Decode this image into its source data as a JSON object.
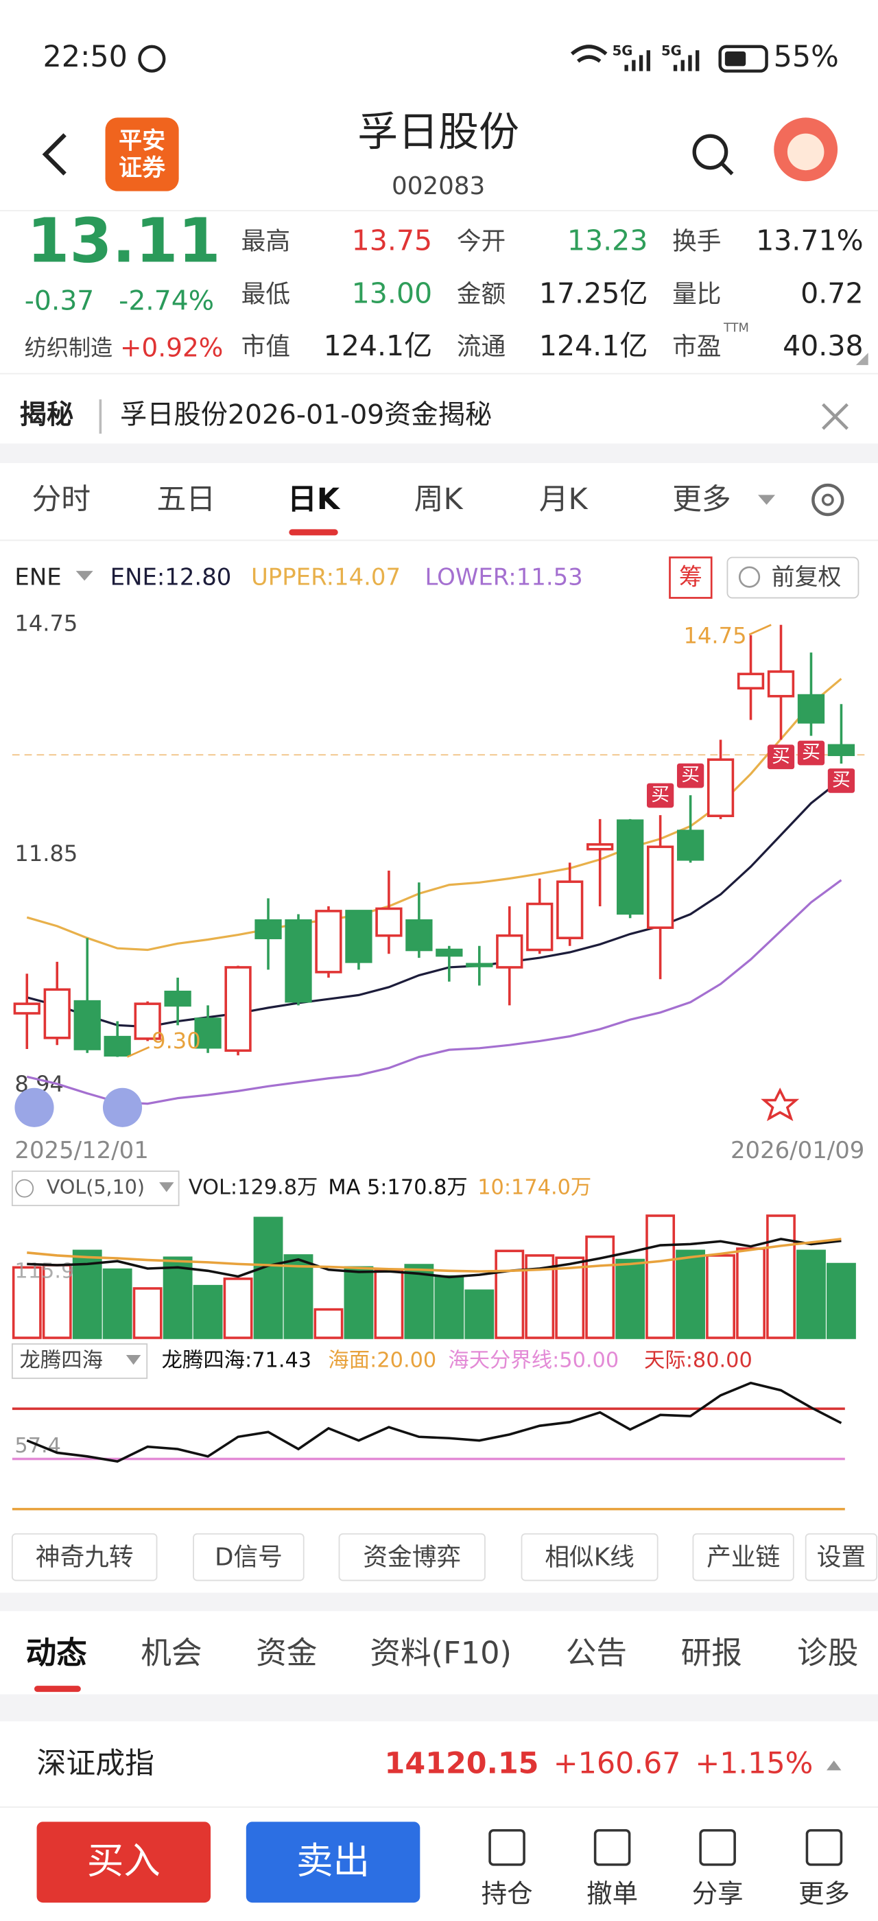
{
  "status_bar": {
    "time": "22:50",
    "net": "5G",
    "battery": "55%"
  },
  "header": {
    "logo": [
      "平安",
      "证券"
    ],
    "name": "孚日股份",
    "code": "002083"
  },
  "quote": {
    "price": "13.11",
    "change": "-0.37",
    "change_pct": "-2.74%",
    "sector": "纺织制造",
    "sector_change": "+0.92%",
    "fields": [
      {
        "label": "最高",
        "value": "13.75"
      },
      {
        "label": "今开",
        "value": "13.23"
      },
      {
        "label": "换手",
        "value": "13.71%"
      },
      {
        "label": "最低",
        "value": "13.00"
      },
      {
        "label": "金额",
        "value": "17.25亿"
      },
      {
        "label": "量比",
        "value": "0.72"
      },
      {
        "label": "市值",
        "value": "124.1亿"
      },
      {
        "label": "流通",
        "value": "124.1亿"
      },
      {
        "label": "市盈",
        "value": "40.38"
      }
    ],
    "pe_suffix": "TTM"
  },
  "banner": {
    "tag": "揭秘",
    "text": "孚日股份2026-01-09资金揭秘"
  },
  "period_tabs": [
    "分时",
    "五日",
    "日K",
    "周K",
    "月K",
    "更多"
  ],
  "kline": {
    "indicator": "ENE",
    "chip": "筹",
    "adjust": "前复权",
    "ylim": [
      8.94,
      14.75
    ],
    "yticks": [
      14.75,
      11.85,
      8.94
    ],
    "dates": [
      "2025/12/01",
      "2026/01/09"
    ],
    "low_label": "9.30",
    "candles": [
      {
        "o": 9.85,
        "h": 10.35,
        "l": 9.4,
        "c": 9.97
      },
      {
        "o": 9.54,
        "h": 10.5,
        "l": 9.45,
        "c": 10.15
      },
      {
        "o": 10.0,
        "h": 10.8,
        "l": 9.35,
        "c": 9.4
      },
      {
        "o": 9.55,
        "h": 9.75,
        "l": 9.3,
        "c": 9.32
      },
      {
        "o": 9.53,
        "h": 10.0,
        "l": 9.5,
        "c": 9.97
      },
      {
        "o": 10.12,
        "h": 10.3,
        "l": 9.7,
        "c": 9.95
      },
      {
        "o": 9.78,
        "h": 9.95,
        "l": 9.35,
        "c": 9.42
      },
      {
        "o": 9.38,
        "h": 10.45,
        "l": 9.32,
        "c": 10.43
      },
      {
        "o": 11.02,
        "h": 11.3,
        "l": 10.4,
        "c": 10.8
      },
      {
        "o": 11.02,
        "h": 11.1,
        "l": 9.95,
        "c": 10.0
      },
      {
        "o": 10.37,
        "h": 11.2,
        "l": 10.3,
        "c": 11.14
      },
      {
        "o": 11.14,
        "h": 11.15,
        "l": 10.4,
        "c": 10.5
      },
      {
        "o": 10.83,
        "h": 11.65,
        "l": 10.6,
        "c": 11.17
      },
      {
        "o": 11.02,
        "h": 11.5,
        "l": 10.55,
        "c": 10.65
      },
      {
        "o": 10.65,
        "h": 10.7,
        "l": 10.25,
        "c": 10.58
      },
      {
        "o": 10.47,
        "h": 10.7,
        "l": 10.2,
        "c": 10.45
      },
      {
        "o": 10.43,
        "h": 11.2,
        "l": 9.95,
        "c": 10.83
      },
      {
        "o": 10.65,
        "h": 11.55,
        "l": 10.6,
        "c": 11.23
      },
      {
        "o": 10.8,
        "h": 11.75,
        "l": 10.7,
        "c": 11.51
      },
      {
        "o": 11.92,
        "h": 12.3,
        "l": 11.2,
        "c": 11.98
      },
      {
        "o": 12.28,
        "h": 12.3,
        "l": 11.05,
        "c": 11.11
      },
      {
        "o": 10.93,
        "h": 12.35,
        "l": 10.28,
        "c": 11.95
      },
      {
        "o": 12.15,
        "h": 12.6,
        "l": 11.75,
        "c": 11.79
      },
      {
        "o": 12.34,
        "h": 13.3,
        "l": 12.3,
        "c": 13.05
      },
      {
        "o": 13.95,
        "h": 14.62,
        "l": 13.55,
        "c": 14.13
      },
      {
        "o": 13.85,
        "h": 14.75,
        "l": 13.3,
        "c": 14.16
      },
      {
        "o": 13.86,
        "h": 14.4,
        "l": 13.35,
        "c": 13.52
      },
      {
        "o": 13.23,
        "h": 13.75,
        "l": 13.0,
        "c": 13.11
      }
    ],
    "signals": [
      null,
      null,
      null,
      null,
      null,
      null,
      null,
      null,
      null,
      null,
      null,
      null,
      null,
      null,
      null,
      null,
      null,
      null,
      null,
      null,
      null,
      "买",
      "买",
      null,
      null,
      "买",
      "买",
      "买"
    ],
    "lines": [
      {
        "legend": "ENE:12.80",
        "color": "#1c1c3a",
        "values": [
          10.05,
          9.95,
          9.82,
          9.7,
          9.68,
          9.75,
          9.8,
          9.85,
          9.92,
          9.98,
          10.03,
          10.08,
          10.18,
          10.33,
          10.43,
          10.45,
          10.5,
          10.55,
          10.62,
          10.72,
          10.85,
          10.95,
          11.1,
          11.35,
          11.7,
          12.1,
          12.5,
          12.8
        ]
      },
      {
        "legend": "UPPER:14.07",
        "color": "#e8b04a",
        "values": [
          11.06,
          10.95,
          10.8,
          10.67,
          10.65,
          10.73,
          10.78,
          10.84,
          10.91,
          10.98,
          11.03,
          11.09,
          11.2,
          11.36,
          11.47,
          11.5,
          11.55,
          11.61,
          11.68,
          11.79,
          11.94,
          12.05,
          12.21,
          12.49,
          12.87,
          13.31,
          13.75,
          14.07
        ]
      },
      {
        "legend": "LOWER:11.53",
        "color": "#a46fd0",
        "values": [
          9.05,
          8.96,
          8.84,
          8.73,
          8.71,
          8.78,
          8.82,
          8.87,
          8.93,
          8.98,
          9.03,
          9.07,
          9.16,
          9.3,
          9.39,
          9.41,
          9.45,
          9.5,
          9.56,
          9.65,
          9.77,
          9.86,
          9.99,
          10.22,
          10.53,
          10.89,
          11.25,
          11.53
        ]
      }
    ]
  },
  "volume": {
    "button": "VOL(5,10)",
    "legend": "VOL:129.8万",
    "ylim": [
      0,
      220
    ],
    "yticks": [
      115.9
    ],
    "values": [
      124,
      128,
      153,
      120,
      87,
      141,
      91,
      104,
      211,
      145,
      50,
      124,
      120,
      128,
      108,
      83,
      153,
      145,
      141,
      178,
      137,
      215,
      153,
      145,
      157,
      215,
      153,
      129.8
    ],
    "lines": [
      {
        "legend": "MA 5:170.8万",
        "color": "#111111",
        "values": [
          130,
          128,
          130,
          135,
          122,
          124,
          118,
          108,
          127,
          138,
          120,
          116,
          117,
          113,
          107,
          111,
          118,
          122,
          130,
          140,
          151,
          163,
          165,
          170,
          161,
          174,
          165,
          170.8
        ]
      },
      {
        "legend": "10:174.0万",
        "color": "#e8a23c",
        "values": [
          150,
          145,
          142,
          140,
          137,
          135,
          133,
          130,
          128,
          126,
          125,
          123,
          121,
          120,
          118,
          117,
          118,
          120,
          123,
          127,
          130,
          135,
          142,
          148,
          155,
          162,
          168,
          174.0
        ]
      }
    ]
  },
  "dragon": {
    "button": "龙腾四海",
    "ylim": [
      14,
      96
    ],
    "yticks": [
      57.4
    ],
    "line": {
      "legend": "龙腾四海:71.43",
      "color": "#111111",
      "values": [
        61.0,
        53.7,
        51.5,
        48.5,
        57.3,
        55.9,
        51.5,
        63.2,
        66.1,
        55.9,
        68.3,
        61.0,
        69.0,
        63.2,
        62.4,
        61.0,
        64.6,
        69.8,
        72.0,
        77.8,
        67.6,
        76.3,
        75.6,
        88.0,
        95.4,
        91.0,
        80.7,
        71.43
      ]
    },
    "levels": [
      {
        "legend": "海面:20.00",
        "value": 20,
        "color": "#e8a23c"
      },
      {
        "legend": "海天分界线:50.00",
        "value": 50,
        "color": "#e38ad6"
      },
      {
        "legend": "天际:80.00",
        "value": 80,
        "color": "#d83434"
      }
    ]
  },
  "tool_buttons": [
    "神奇九转",
    "D信号",
    "资金博弈",
    "相似K线",
    "产业链",
    "设置"
  ],
  "bottom_tabs": [
    "动态",
    "机会",
    "资金",
    "资料(F10)",
    "公告",
    "研报",
    "诊股"
  ],
  "index": {
    "name": "深证成指",
    "value": "14120.15",
    "change": "+160.67",
    "pct": "+1.15%"
  },
  "footer": {
    "buy": "买入",
    "sell": "卖出",
    "actions": [
      "持仓",
      "撤单",
      "分享",
      "更多"
    ]
  }
}
